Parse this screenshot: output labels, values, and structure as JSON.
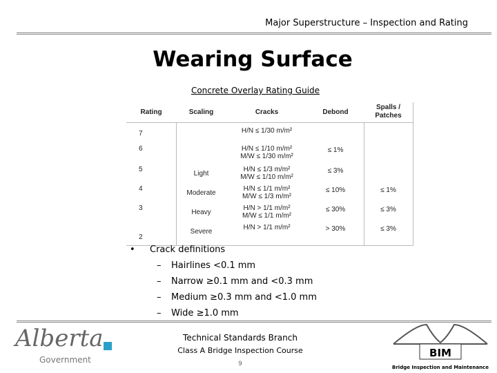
{
  "header": {
    "title": "Major Superstructure – Inspection and Rating"
  },
  "title": "Wearing Surface",
  "table": {
    "caption": "Concrete Overlay Rating Guide",
    "columns": [
      "Rating",
      "Scaling",
      "Cracks",
      "Debond",
      "Spalls / Patches"
    ],
    "rows": [
      {
        "rating": "7",
        "cracks": [
          "H/N ≤ 1/30 m/m²"
        ]
      },
      {
        "rating": "6",
        "cracks": [
          "H/N ≤ 1/10 m/m²",
          "M/W ≤ 1/30 m/m²"
        ],
        "debond": "≤ 1%"
      },
      {
        "rating": "5",
        "scaling": "Light",
        "cracks": [
          "H/N ≤ 1/3 m/m²",
          "M/W ≤ 1/10 m/m²"
        ],
        "debond": "≤ 3%"
      },
      {
        "rating": "4",
        "scaling": "Moderate",
        "cracks": [
          "H/N ≤ 1/1 m/m²",
          "M/W ≤ 1/3 m/m²"
        ],
        "debond": "≤ 10%",
        "spalls": "≤ 1%"
      },
      {
        "rating": "3",
        "scaling": "Heavy",
        "cracks": [
          "H/N > 1/1 m/m²",
          "M/W ≤ 1/1 m/m²"
        ],
        "debond": "≤ 30%",
        "spalls": "≤ 3%"
      },
      {
        "rating": "2",
        "scaling": "Severe",
        "cracks": [
          "H/N > 1/1 m/m²"
        ],
        "debond": "> 30%",
        "spalls": "≤ 3%"
      }
    ]
  },
  "bullets": {
    "heading": "Crack definitions",
    "items": [
      "Hairlines <0.1 mm",
      "Narrow ≥0.1 mm and <0.3 mm",
      "Medium ≥0.3 mm and <1.0 mm",
      "Wide ≥1.0 mm"
    ]
  },
  "footer": {
    "branch": "Technical Standards Branch",
    "course": "Class A Bridge Inspection Course",
    "page": "9",
    "logo_left": {
      "name": "Alberta",
      "sub": "Government"
    },
    "logo_right": {
      "name": "BIM",
      "sub": "Bridge Inspection and Maintenance"
    }
  }
}
